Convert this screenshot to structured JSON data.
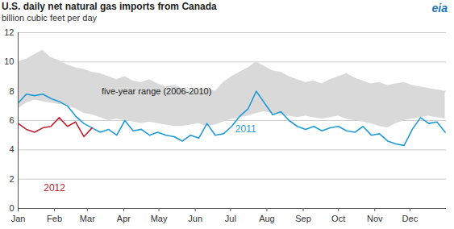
{
  "chart_data": {
    "type": "line",
    "title": "U.S. daily net natural gas imports from Canada",
    "subtitle": "billion cubic feet per day",
    "logo": "eia",
    "x": [
      0,
      7,
      14,
      21,
      28,
      35,
      42,
      49,
      56,
      63,
      70,
      77,
      84,
      91,
      98,
      105,
      112,
      119,
      126,
      133,
      140,
      147,
      154,
      161,
      168,
      175,
      182,
      189,
      196,
      203,
      210,
      217,
      224,
      231,
      238,
      245,
      252,
      259,
      266,
      273,
      280,
      287,
      294,
      301,
      308,
      315,
      322,
      329,
      336,
      343,
      350,
      357,
      364
    ],
    "xlim": [
      0,
      365
    ],
    "xticks": [
      {
        "value": 0,
        "label": "Jan"
      },
      {
        "value": 31,
        "label": "Feb"
      },
      {
        "value": 59,
        "label": "Mar"
      },
      {
        "value": 90,
        "label": "Apr"
      },
      {
        "value": 120,
        "label": "May"
      },
      {
        "value": 151,
        "label": "Jun"
      },
      {
        "value": 181,
        "label": "Jul"
      },
      {
        "value": 212,
        "label": "Aug"
      },
      {
        "value": 243,
        "label": "Sep"
      },
      {
        "value": 273,
        "label": "Oct"
      },
      {
        "value": 304,
        "label": "Nov"
      },
      {
        "value": 334,
        "label": "Dec"
      }
    ],
    "ylim": [
      0,
      12
    ],
    "yticks": [
      0,
      2,
      4,
      6,
      8,
      10,
      12
    ],
    "grid": true,
    "series": [
      {
        "name": "five-year range (2006-2010)",
        "type": "area",
        "color": "#d9d9d9",
        "label": {
          "x": 118,
          "y": 8.0
        },
        "low": [
          6.8,
          7.2,
          7.4,
          7.3,
          7.2,
          7.1,
          7.0,
          6.8,
          6.5,
          6.4,
          6.2,
          6.0,
          6.1,
          6.0,
          5.9,
          5.8,
          5.9,
          5.8,
          5.7,
          5.6,
          5.6,
          5.7,
          5.8,
          5.6,
          5.7,
          5.9,
          6.1,
          6.2,
          6.3,
          6.5,
          6.6,
          6.5,
          6.4,
          6.3,
          6.2,
          6.3,
          6.2,
          6.1,
          6.2,
          6.3,
          6.1,
          6.0,
          5.9,
          5.8,
          5.6,
          5.5,
          5.8,
          6.0,
          6.1,
          6.2,
          6.3,
          6.2,
          6.1
        ],
        "high": [
          10.0,
          10.2,
          10.5,
          10.8,
          10.3,
          10.1,
          9.8,
          9.6,
          9.5,
          9.3,
          9.2,
          9.0,
          8.8,
          9.0,
          8.7,
          8.6,
          8.8,
          8.5,
          8.3,
          8.4,
          8.2,
          8.0,
          8.1,
          8.2,
          8.0,
          8.6,
          9.0,
          9.3,
          9.6,
          10.0,
          9.7,
          9.4,
          9.3,
          9.0,
          8.8,
          8.6,
          8.7,
          8.5,
          8.8,
          9.0,
          9.2,
          8.9,
          8.7,
          8.5,
          8.6,
          8.4,
          8.5,
          8.6,
          8.4,
          8.3,
          8.2,
          8.1,
          8.0
        ]
      },
      {
        "name": "2011",
        "type": "line",
        "color": "#1f9bd7",
        "label": {
          "x": 194,
          "y": 5.4
        },
        "values": [
          7.2,
          7.8,
          7.7,
          7.8,
          7.5,
          7.3,
          7.0,
          6.3,
          5.8,
          5.5,
          5.2,
          5.4,
          5.0,
          6.0,
          5.3,
          5.4,
          5.0,
          5.2,
          5.0,
          4.9,
          4.6,
          5.0,
          4.8,
          5.8,
          5.0,
          5.1,
          5.6,
          6.3,
          6.8,
          8.0,
          7.2,
          6.4,
          6.6,
          6.0,
          5.6,
          5.4,
          5.6,
          5.3,
          5.5,
          5.6,
          5.3,
          5.2,
          5.6,
          5.0,
          5.1,
          4.6,
          4.4,
          4.3,
          5.4,
          6.2,
          5.8,
          5.9,
          5.2
        ]
      },
      {
        "name": "2012",
        "type": "line",
        "color": "#c0202f",
        "label": {
          "x": 31,
          "y": 1.4
        },
        "values": [
          5.8,
          5.4,
          5.2,
          5.5,
          5.6,
          6.2,
          5.6,
          5.9,
          4.9,
          5.5,
          null,
          null,
          null,
          null,
          null,
          null,
          null,
          null,
          null,
          null,
          null,
          null,
          null,
          null,
          null,
          null,
          null,
          null,
          null,
          null,
          null,
          null,
          null,
          null,
          null,
          null,
          null,
          null,
          null,
          null,
          null,
          null,
          null,
          null,
          null,
          null,
          null,
          null,
          null,
          null,
          null,
          null,
          null
        ]
      }
    ]
  }
}
